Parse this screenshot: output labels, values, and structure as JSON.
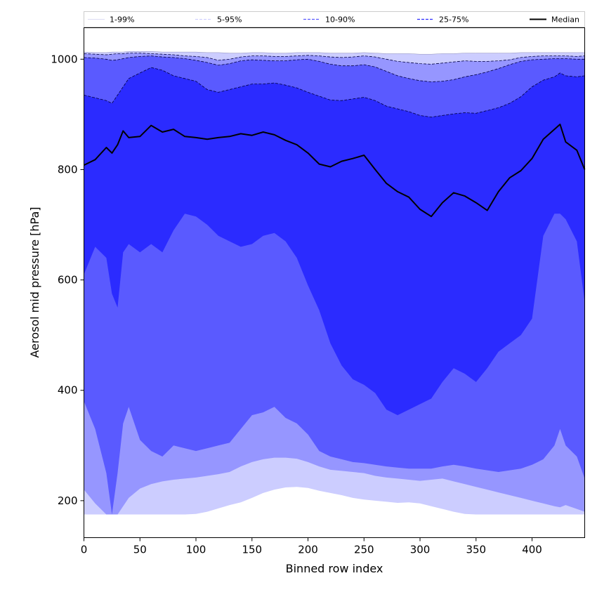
{
  "chart_data": {
    "type": "area",
    "xlabel": "Binned row index",
    "ylabel": "Aerosol mid pressure [hPa]",
    "xlim": [
      0,
      447
    ],
    "ylim": [
      133,
      1057
    ],
    "x_ticks": [
      0,
      50,
      100,
      150,
      200,
      250,
      300,
      350,
      400
    ],
    "y_ticks": [
      200,
      400,
      600,
      800,
      1000
    ],
    "grid": false,
    "legend_position": "top",
    "x": [
      0,
      10,
      20,
      25,
      30,
      35,
      40,
      50,
      60,
      70,
      80,
      90,
      100,
      110,
      120,
      130,
      140,
      150,
      160,
      170,
      180,
      190,
      200,
      210,
      220,
      230,
      240,
      250,
      260,
      270,
      280,
      290,
      300,
      310,
      320,
      330,
      340,
      350,
      360,
      370,
      380,
      390,
      400,
      410,
      420,
      425,
      430,
      440,
      447
    ],
    "bands": [
      {
        "name": "1-99%",
        "color": "#cccdff",
        "lower": [
          175,
          175,
          175,
          175,
          175,
          175,
          175,
          175,
          175,
          175,
          175,
          175,
          176,
          180,
          186,
          192,
          197,
          205,
          214,
          220,
          224,
          225,
          223,
          218,
          214,
          210,
          205,
          202,
          200,
          198,
          196,
          197,
          195,
          190,
          185,
          180,
          176,
          175,
          175,
          175,
          175,
          175,
          175,
          175,
          175,
          175,
          175,
          175,
          175
        ],
        "upper": [
          1013,
          1012,
          1012,
          1013,
          1013,
          1013,
          1014,
          1014,
          1014,
          1013,
          1013,
          1013,
          1013,
          1012,
          1012,
          1011,
          1011,
          1012,
          1012,
          1011,
          1011,
          1012,
          1012,
          1012,
          1011,
          1011,
          1011,
          1012,
          1011,
          1010,
          1010,
          1010,
          1009,
          1009,
          1010,
          1010,
          1011,
          1011,
          1011,
          1011,
          1011,
          1012,
          1012,
          1012,
          1012,
          1012,
          1012,
          1012,
          1012
        ]
      },
      {
        "name": "5-95%",
        "color": "#9696ff",
        "lower": [
          220,
          195,
          175,
          175,
          175,
          190,
          205,
          222,
          230,
          235,
          238,
          240,
          242,
          245,
          248,
          252,
          262,
          270,
          275,
          278,
          278,
          276,
          270,
          262,
          256,
          254,
          252,
          250,
          245,
          242,
          240,
          238,
          236,
          238,
          240,
          235,
          230,
          225,
          220,
          215,
          210,
          205,
          200,
          195,
          190,
          188,
          192,
          185,
          180
        ],
        "upper": [
          1010,
          1009,
          1008,
          1009,
          1010,
          1010,
          1011,
          1011,
          1010,
          1009,
          1008,
          1006,
          1005,
          1003,
          998,
          1000,
          1004,
          1006,
          1006,
          1005,
          1005,
          1006,
          1007,
          1006,
          1004,
          1003,
          1004,
          1006,
          1004,
          1000,
          996,
          994,
          992,
          991,
          993,
          995,
          997,
          996,
          996,
          997,
          999,
          1003,
          1005,
          1006,
          1006,
          1006,
          1006,
          1005,
          1006
        ]
      },
      {
        "name": "10-90%",
        "color": "#5a5aff",
        "lower": [
          380,
          330,
          250,
          175,
          250,
          340,
          370,
          310,
          290,
          280,
          300,
          295,
          290,
          295,
          300,
          305,
          330,
          355,
          360,
          370,
          350,
          340,
          320,
          290,
          280,
          275,
          270,
          268,
          265,
          262,
          260,
          258,
          258,
          258,
          262,
          265,
          262,
          258,
          255,
          252,
          255,
          258,
          265,
          275,
          300,
          330,
          300,
          280,
          240
        ],
        "upper": [
          1003,
          1002,
          1000,
          998,
          999,
          1001,
          1003,
          1005,
          1006,
          1004,
          1003,
          1001,
          998,
          994,
          989,
          992,
          997,
          999,
          998,
          997,
          997,
          999,
          1000,
          996,
          991,
          988,
          988,
          990,
          986,
          978,
          970,
          965,
          961,
          959,
          960,
          963,
          968,
          972,
          977,
          983,
          990,
          996,
          999,
          1000,
          1001,
          1001,
          1001,
          1000,
          1000
        ]
      },
      {
        "name": "25-75%",
        "color": "#2b2bff",
        "lower": [
          610,
          660,
          640,
          575,
          550,
          650,
          665,
          650,
          665,
          650,
          690,
          720,
          715,
          700,
          680,
          670,
          660,
          665,
          680,
          685,
          670,
          640,
          590,
          545,
          485,
          445,
          420,
          410,
          395,
          365,
          355,
          365,
          375,
          385,
          415,
          440,
          430,
          415,
          440,
          470,
          485,
          500,
          530,
          680,
          720,
          720,
          710,
          670,
          560
        ],
        "upper": [
          935,
          930,
          925,
          920,
          935,
          950,
          965,
          975,
          985,
          980,
          970,
          965,
          960,
          945,
          940,
          945,
          950,
          955,
          955,
          957,
          953,
          948,
          940,
          933,
          926,
          925,
          928,
          931,
          925,
          915,
          910,
          905,
          898,
          895,
          898,
          901,
          903,
          902,
          907,
          912,
          920,
          932,
          950,
          962,
          968,
          975,
          970,
          968,
          970
        ]
      }
    ],
    "series": [
      {
        "name": "Median",
        "color": "#000000",
        "values": [
          808,
          818,
          840,
          830,
          845,
          870,
          858,
          860,
          880,
          868,
          873,
          860,
          858,
          855,
          858,
          860,
          865,
          862,
          868,
          863,
          853,
          845,
          830,
          810,
          805,
          815,
          820,
          826,
          800,
          775,
          760,
          750,
          728,
          715,
          740,
          758,
          752,
          740,
          726,
          760,
          785,
          798,
          820,
          855,
          873,
          882,
          850,
          835,
          800
        ]
      }
    ],
    "legend": [
      {
        "label": "1-99%",
        "color": "#cccdff",
        "style": "solid",
        "width": 0.6
      },
      {
        "label": "5-95%",
        "color": "#9696ff",
        "style": "dashed",
        "width": 0.6
      },
      {
        "label": "10-90%",
        "color": "#5a5aff",
        "style": "dashed",
        "width": 1.2
      },
      {
        "label": "25-75%",
        "color": "#2b2bff",
        "style": "dashed",
        "width": 1.2
      },
      {
        "label": "Median",
        "color": "#000000",
        "style": "solid",
        "width": 2
      }
    ]
  }
}
